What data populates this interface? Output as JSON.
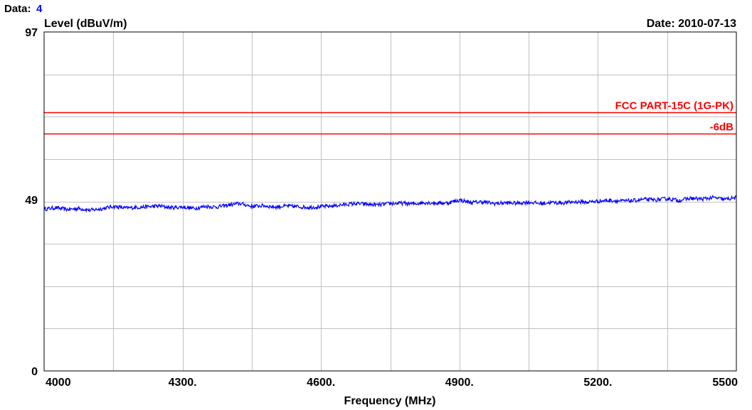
{
  "header": {
    "data_label": "Data:",
    "data_value": "4",
    "date_label": "Date: 2010-07-13"
  },
  "colors": {
    "grid": "#c0c0c0",
    "frame": "#000000",
    "limit": "#ff0000",
    "trace": "#0000ff",
    "data_value": "#0000ff"
  },
  "chart_data": {
    "type": "line",
    "xlabel": "Frequency (MHz)",
    "ylabel": "Level (dBuV/m)",
    "xlim": [
      4000,
      5500
    ],
    "ylim": [
      0,
      97
    ],
    "x_ticks": [
      {
        "value": 4000,
        "label": "4000"
      },
      {
        "value": 4300,
        "label": "4300."
      },
      {
        "value": 4600,
        "label": "4600."
      },
      {
        "value": 4900,
        "label": "4900."
      },
      {
        "value": 5200,
        "label": "5200."
      },
      {
        "value": 5500,
        "label": "5500"
      }
    ],
    "y_ticks": [
      {
        "value": 97,
        "label": "97"
      },
      {
        "value": 49,
        "label": "49"
      },
      {
        "value": 0,
        "label": "0"
      }
    ],
    "grid": true,
    "x_grid_step": 150,
    "y_grid_step": 12.125,
    "limit_lines": [
      {
        "name": "FCC PART-15C (1G-PK)",
        "value": 74
      },
      {
        "name": "-6dB",
        "value": 68
      }
    ],
    "series": [
      {
        "x": [
          4000,
          4025,
          4050,
          4075,
          4100,
          4125,
          4150,
          4175,
          4200,
          4225,
          4250,
          4275,
          4300,
          4325,
          4350,
          4375,
          4400,
          4425,
          4450,
          4475,
          4500,
          4525,
          4550,
          4575,
          4600,
          4625,
          4650,
          4675,
          4700,
          4725,
          4750,
          4775,
          4800,
          4825,
          4850,
          4875,
          4900,
          4925,
          4950,
          4975,
          5000,
          5025,
          5050,
          5075,
          5100,
          5125,
          5150,
          5175,
          5200,
          5225,
          5250,
          5275,
          5300,
          5325,
          5350,
          5375,
          5400,
          5425,
          5450,
          5475,
          5500
        ],
        "values": [
          46.3,
          46.7,
          46.2,
          46.5,
          46.0,
          46.4,
          47.1,
          46.6,
          46.8,
          47.0,
          47.2,
          46.7,
          46.9,
          46.5,
          47.1,
          46.9,
          47.5,
          47.9,
          47.1,
          47.3,
          46.9,
          47.2,
          47.0,
          46.8,
          47.0,
          47.2,
          47.6,
          47.9,
          47.7,
          47.5,
          47.9,
          48.0,
          47.8,
          48.2,
          48.0,
          48.1,
          48.9,
          48.2,
          48.4,
          47.9,
          48.1,
          48.0,
          48.3,
          47.9,
          48.2,
          48.1,
          48.4,
          48.3,
          48.6,
          48.8,
          48.6,
          48.7,
          49.1,
          48.9,
          49.3,
          48.8,
          49.4,
          49.2,
          49.6,
          49.1,
          49.6
        ]
      }
    ]
  }
}
